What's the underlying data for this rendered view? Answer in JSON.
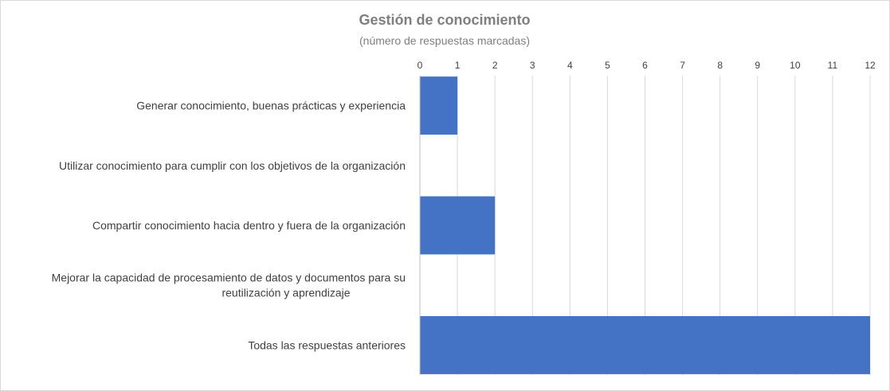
{
  "chart_data": {
    "type": "bar",
    "orientation": "horizontal",
    "title": "Gestión de conocimiento",
    "subtitle": "(número de respuestas marcadas)",
    "categories": [
      [
        "Generar conocimiento, buenas prácticas y experiencia"
      ],
      [
        "Utilizar conocimiento para cumplir con los objetivos de la organización"
      ],
      [
        "Compartir conocimiento hacia dentro y fuera de la organización"
      ],
      [
        "Mejorar la capacidad de procesamiento de datos y documentos para su",
        "reutilización y aprendizaje"
      ],
      [
        "Todas las respuestas anteriores"
      ]
    ],
    "values": [
      1,
      0,
      2,
      0,
      12
    ],
    "xlim": [
      0,
      12
    ],
    "xticks": [
      "0",
      "1",
      "2",
      "3",
      "4",
      "5",
      "6",
      "7",
      "8",
      "9",
      "10",
      "11",
      "12"
    ],
    "xaxis_position": "top",
    "grid": true,
    "legend": "none",
    "bar_color": "#4472c4"
  }
}
